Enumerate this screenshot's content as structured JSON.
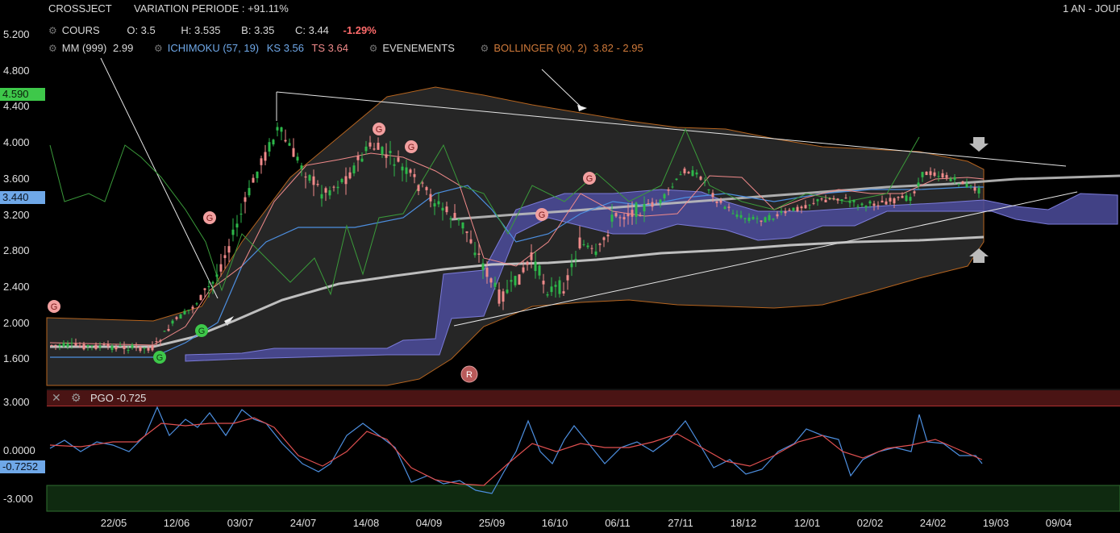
{
  "header": {
    "symbol": "CROSSJECT",
    "variation": "VARIATION PERIODE : +91.11%",
    "period": "1 AN - JOUR"
  },
  "ohlc": {
    "cours_label": "COURS",
    "open": "O: 3.5",
    "high": "H: 3.535",
    "low": "B: 3.35",
    "close": "C: 3.44",
    "change": "-1.29%"
  },
  "indicators": {
    "mm": "MM (999)",
    "mm_value": "2.99",
    "ichimoku": "ICHIMOKU (57, 19)",
    "ks": "KS 3.56",
    "ts": "TS 3.64",
    "evenements": "EVENEMENTS",
    "bollinger": "BOLLINGER (90, 2)",
    "bollinger_values": "3.82 - 2.95"
  },
  "price_axis": {
    "ticks": [
      "5.200",
      "4.800",
      "4.400",
      "4.000",
      "3.600",
      "3.200",
      "2.800",
      "2.400",
      "2.000",
      "1.600"
    ],
    "badge_high": "4.590",
    "badge_last": "3.440"
  },
  "pgo": {
    "label": "PGO -0.725",
    "ticks": [
      "3.000",
      "0.0000",
      "-3.000"
    ],
    "badge": "-0.7252"
  },
  "x_axis": {
    "ticks": [
      "22/05",
      "12/06",
      "03/07",
      "24/07",
      "14/08",
      "04/09",
      "25/09",
      "16/10",
      "06/11",
      "27/11",
      "18/12",
      "12/01",
      "02/02",
      "24/02",
      "19/03",
      "09/04"
    ]
  },
  "event_markers": {
    "g": "G",
    "r": "R"
  },
  "colors": {
    "background": "#000000",
    "bull": "#2db84a",
    "bear": "#f08a8a",
    "ichimoku_cloud": "#5a5aa8",
    "bollinger": "#c06a2a",
    "ks": "#4d8fe0",
    "mm_line": "#d0d0d0",
    "pgo_line": "#4d8fe0",
    "pgo_signal": "#e05050",
    "badge_high": "#3ec84a",
    "badge_last": "#6fa8e8"
  }
}
